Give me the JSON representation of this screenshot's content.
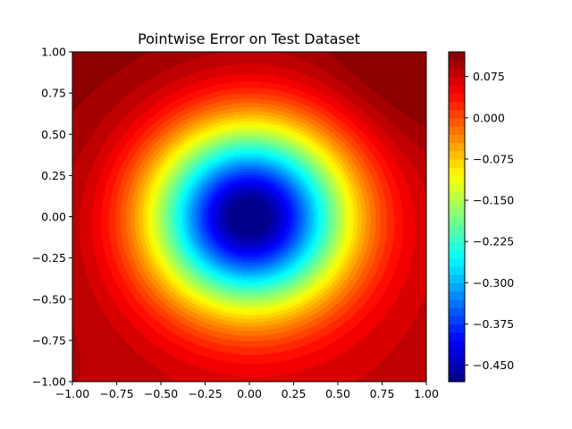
{
  "chart_data": {
    "type": "contour",
    "title": "Pointwise Error on Test Dataset",
    "xlabel": "",
    "ylabel": "",
    "xlim": [
      -1.0,
      1.0
    ],
    "ylim": [
      -1.0,
      1.0
    ],
    "x_ticks": [
      "−1.00",
      "−0.75",
      "−0.50",
      "−0.25",
      "0.00",
      "0.25",
      "0.50",
      "0.75",
      "1.00"
    ],
    "y_ticks": [
      "1.00",
      "0.75",
      "0.50",
      "0.25",
      "0.00",
      "−0.25",
      "−0.50",
      "−0.75",
      "−1.00"
    ],
    "x_tick_values": [
      -1.0,
      -0.75,
      -0.5,
      -0.25,
      0.0,
      0.25,
      0.5,
      0.75,
      1.0
    ],
    "y_tick_values": [
      1.0,
      0.75,
      0.5,
      0.25,
      0.0,
      -0.25,
      -0.5,
      -0.75,
      -1.0
    ],
    "colormap": "jet",
    "value_range": [
      -0.48,
      0.12
    ],
    "minimum": {
      "x": 0.0,
      "y": 0.0,
      "value": -0.47
    },
    "maximum": {
      "x": 1.0,
      "y": 1.0,
      "value": 0.115
    },
    "colorbar": {
      "ticks": [
        "0.075",
        "0.000",
        "−0.075",
        "−0.150",
        "−0.225",
        "−0.300",
        "−0.375",
        "−0.450"
      ],
      "tick_values": [
        0.075,
        0.0,
        -0.075,
        -0.15,
        -0.225,
        -0.3,
        -0.375,
        -0.45
      ],
      "range": [
        -0.48,
        0.12
      ],
      "levels": 40
    },
    "grid": false
  }
}
